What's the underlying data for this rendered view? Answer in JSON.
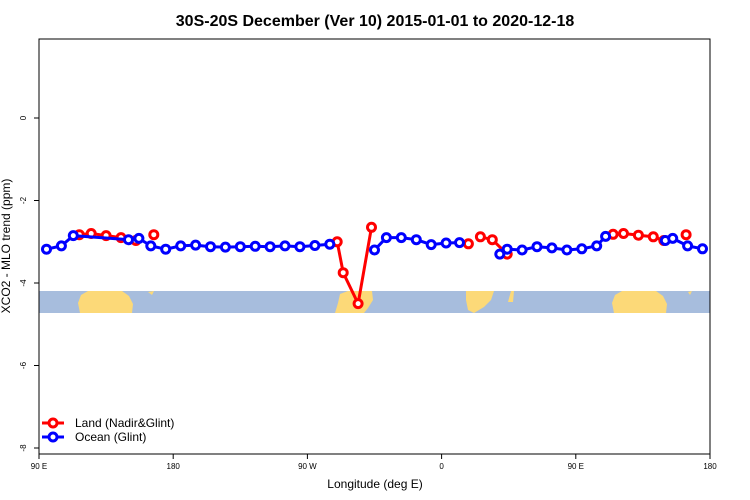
{
  "chart_data": {
    "type": "line",
    "title": "30S-20S December (Ver 10)   2015-01-01 to 2020-12-18",
    "xlabel": "Longitude (deg E)",
    "ylabel": "XCO2 - MLO trend (ppm)",
    "xlim": [
      90,
      540
    ],
    "ylim": [
      -8,
      2
    ],
    "x_ticks": [
      {
        "value": 90,
        "label": "90 E"
      },
      {
        "value": 180,
        "label": "180"
      },
      {
        "value": 270,
        "label": "90 W"
      },
      {
        "value": 360,
        "label": "0"
      },
      {
        "value": 450,
        "label": "90 E"
      },
      {
        "value": 540,
        "label": "180"
      }
    ],
    "y_ticks": [
      {
        "value": 0,
        "label": "0"
      },
      {
        "value": -2,
        "label": "-2"
      },
      {
        "value": -4,
        "label": "-4"
      },
      {
        "value": -6,
        "label": "-6"
      },
      {
        "value": -8,
        "label": "-8"
      }
    ],
    "series": [
      {
        "name": "Land (Nadir&Glint)",
        "color": "#ff0000",
        "segments": [
          [
            [
              117,
              -2.83
            ],
            [
              125,
              -2.8
            ],
            [
              135,
              -2.85
            ],
            [
              145,
              -2.9
            ],
            [
              155,
              -2.97
            ]
          ],
          [
            [
              167,
              -2.83
            ]
          ],
          [
            [
              290,
              -3.0
            ],
            [
              294,
              -3.75
            ],
            [
              304,
              -4.5
            ],
            [
              313,
              -2.65
            ]
          ],
          [
            [
              378,
              -3.05
            ]
          ],
          [
            [
              386,
              -2.88
            ],
            [
              394,
              -2.95
            ],
            [
              404,
              -3.3
            ]
          ],
          [
            [
              475,
              -2.82
            ],
            [
              482,
              -2.8
            ],
            [
              492,
              -2.84
            ],
            [
              502,
              -2.88
            ],
            [
              509,
              -2.97
            ]
          ],
          [
            [
              524,
              -2.83
            ]
          ]
        ]
      },
      {
        "name": "Ocean (Glint)",
        "color": "#0000ff",
        "segments": [
          [
            [
              95,
              -3.18
            ],
            [
              105,
              -3.1
            ],
            [
              113,
              -2.85
            ],
            [
              150,
              -2.95
            ],
            [
              157,
              -2.92
            ],
            [
              165,
              -3.1
            ],
            [
              175,
              -3.18
            ],
            [
              185,
              -3.1
            ],
            [
              195,
              -3.08
            ],
            [
              205,
              -3.12
            ],
            [
              215,
              -3.13
            ],
            [
              225,
              -3.12
            ],
            [
              235,
              -3.11
            ],
            [
              245,
              -3.12
            ],
            [
              255,
              -3.1
            ],
            [
              265,
              -3.12
            ],
            [
              275,
              -3.09
            ],
            [
              285,
              -3.06
            ]
          ],
          [
            [
              315,
              -3.2
            ],
            [
              323,
              -2.9
            ],
            [
              333,
              -2.9
            ],
            [
              343,
              -2.95
            ],
            [
              353,
              -3.07
            ],
            [
              363,
              -3.03
            ],
            [
              372,
              -3.02
            ]
          ],
          [
            [
              399,
              -3.3
            ],
            [
              404,
              -3.18
            ],
            [
              414,
              -3.2
            ],
            [
              424,
              -3.12
            ],
            [
              434,
              -3.15
            ],
            [
              444,
              -3.2
            ],
            [
              454,
              -3.17
            ],
            [
              464,
              -3.1
            ],
            [
              470,
              -2.87
            ]
          ],
          [
            [
              510,
              -2.97
            ],
            [
              515,
              -2.92
            ],
            [
              525,
              -3.1
            ],
            [
              535,
              -3.17
            ]
          ]
        ]
      }
    ],
    "legend": {
      "position": "bottom-left"
    }
  }
}
